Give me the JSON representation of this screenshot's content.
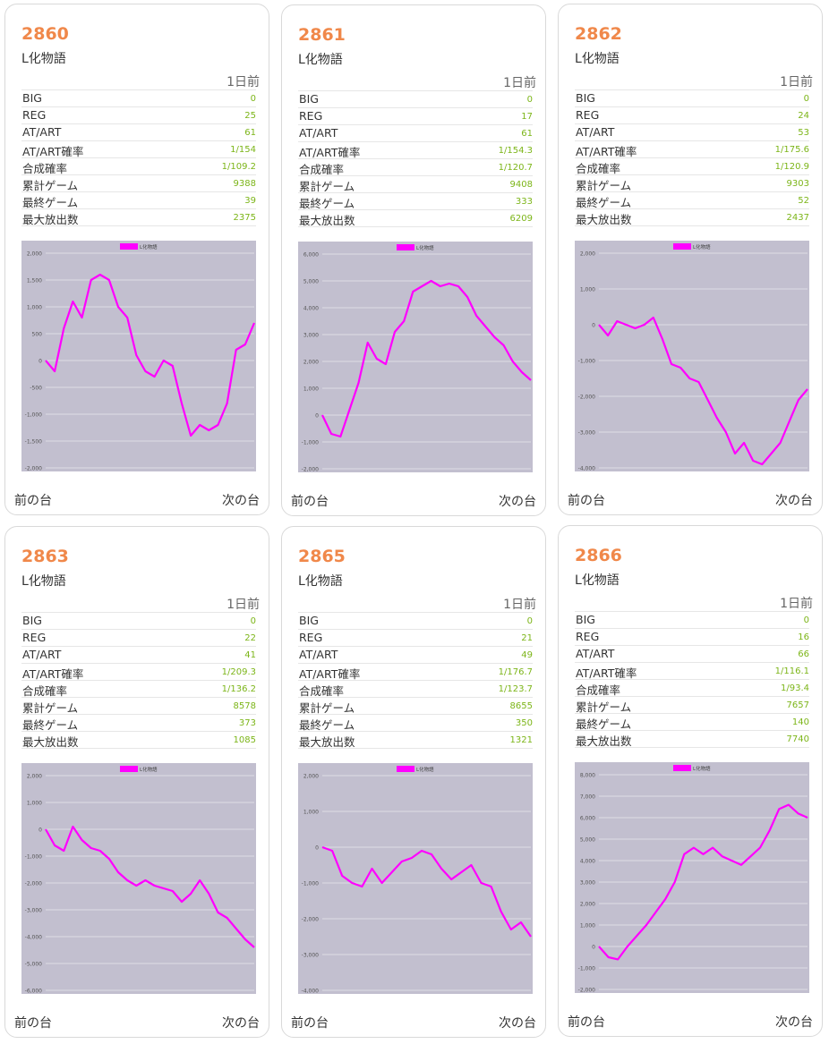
{
  "labels": {
    "period": "1日前",
    "prev": "前の台",
    "next": "次の台",
    "rows": [
      "BIG",
      "REG",
      "AT/ART",
      "AT/ART確率",
      "合成確率",
      "累計ゲーム",
      "最終ゲーム",
      "最大放出数"
    ]
  },
  "colors": {
    "line": "#ff00ff",
    "plot_bg": "#c2bfcf",
    "number": "#f0884a",
    "value": "#7cb518"
  },
  "cards": [
    {
      "number": "2860",
      "name": "L化物語",
      "stats": [
        "0",
        "25",
        "61",
        "1/154",
        "1/109.2",
        "9388",
        "39",
        "2375"
      ],
      "chart_data": {
        "type": "line",
        "legend": "L化物語",
        "ylim": [
          -2000,
          2000
        ],
        "yticks": [
          "2,000",
          "1,500",
          "1,000",
          "500",
          "0",
          "-500",
          "-1,000",
          "-1,500",
          "-2,000"
        ],
        "values": [
          0,
          -200,
          600,
          1100,
          800,
          1500,
          1600,
          1500,
          1000,
          800,
          100,
          -200,
          -300,
          0,
          -100,
          -800,
          -1400,
          -1200,
          -1300,
          -1200,
          -800,
          200,
          300,
          700
        ]
      }
    },
    {
      "number": "2861",
      "name": "L化物語",
      "stats": [
        "0",
        "17",
        "61",
        "1/154.3",
        "1/120.7",
        "9408",
        "333",
        "6209"
      ],
      "chart_data": {
        "type": "line",
        "legend": "L化物語",
        "ylim": [
          -2000,
          6000
        ],
        "yticks": [
          "6,000",
          "5,000",
          "4,000",
          "3,000",
          "2,000",
          "1,000",
          "0",
          "-1,000",
          "-2,000"
        ],
        "values": [
          0,
          -700,
          -800,
          200,
          1200,
          2700,
          2100,
          1900,
          3100,
          3500,
          4600,
          4800,
          5000,
          4800,
          4900,
          4800,
          4400,
          3700,
          3300,
          2900,
          2600,
          2000,
          1600,
          1300
        ]
      }
    },
    {
      "number": "2862",
      "name": "L化物語",
      "stats": [
        "0",
        "24",
        "53",
        "1/175.6",
        "1/120.9",
        "9303",
        "52",
        "2437"
      ],
      "chart_data": {
        "type": "line",
        "legend": "L化物語",
        "ylim": [
          -4000,
          2000
        ],
        "yticks": [
          "2,000",
          "1,000",
          "0",
          "-1,000",
          "-2,000",
          "-3,000",
          "-4,000"
        ],
        "values": [
          0,
          -300,
          100,
          0,
          -100,
          0,
          200,
          -400,
          -1100,
          -1200,
          -1500,
          -1600,
          -2100,
          -2600,
          -3000,
          -3600,
          -3300,
          -3800,
          -3900,
          -3600,
          -3300,
          -2700,
          -2100,
          -1800
        ]
      }
    },
    {
      "number": "2863",
      "name": "L化物語",
      "stats": [
        "0",
        "22",
        "41",
        "1/209.3",
        "1/136.2",
        "8578",
        "373",
        "1085"
      ],
      "chart_data": {
        "type": "line",
        "legend": "L化物語",
        "ylim": [
          -6000,
          2000
        ],
        "yticks": [
          "2,000",
          "1,000",
          "0",
          "-1,000",
          "-2,000",
          "-3,000",
          "-4,000",
          "-5,000",
          "-6,000"
        ],
        "values": [
          0,
          -600,
          -800,
          100,
          -400,
          -700,
          -800,
          -1100,
          -1600,
          -1900,
          -2100,
          -1900,
          -2100,
          -2200,
          -2300,
          -2700,
          -2400,
          -1900,
          -2400,
          -3100,
          -3300,
          -3700,
          -4100,
          -4400
        ]
      }
    },
    {
      "number": "2865",
      "name": "L化物語",
      "stats": [
        "0",
        "21",
        "49",
        "1/176.7",
        "1/123.7",
        "8655",
        "350",
        "1321"
      ],
      "chart_data": {
        "type": "line",
        "legend": "L化物語",
        "ylim": [
          -4000,
          2000
        ],
        "yticks": [
          "2,000",
          "1,000",
          "0",
          "-1,000",
          "-2,000",
          "-3,000",
          "-4,000"
        ],
        "values": [
          0,
          -100,
          -800,
          -1000,
          -1100,
          -600,
          -1000,
          -700,
          -400,
          -300,
          -100,
          -200,
          -600,
          -900,
          -700,
          -500,
          -1000,
          -1100,
          -1800,
          -2300,
          -2100,
          -2500
        ]
      }
    },
    {
      "number": "2866",
      "name": "L化物語",
      "stats": [
        "0",
        "16",
        "66",
        "1/116.1",
        "1/93.4",
        "7657",
        "140",
        "7740"
      ],
      "chart_data": {
        "type": "line",
        "legend": "L化物語",
        "ylim": [
          -2000,
          8000
        ],
        "yticks": [
          "8,000",
          "7,000",
          "6,000",
          "5,000",
          "4,000",
          "3,000",
          "2,000",
          "1,000",
          "0",
          "-1,000",
          "-2,000"
        ],
        "values": [
          0,
          -500,
          -600,
          0,
          500,
          1000,
          1600,
          2200,
          3000,
          4300,
          4600,
          4300,
          4600,
          4200,
          4000,
          3800,
          4200,
          4600,
          5400,
          6400,
          6600,
          6200,
          6000
        ]
      }
    }
  ]
}
